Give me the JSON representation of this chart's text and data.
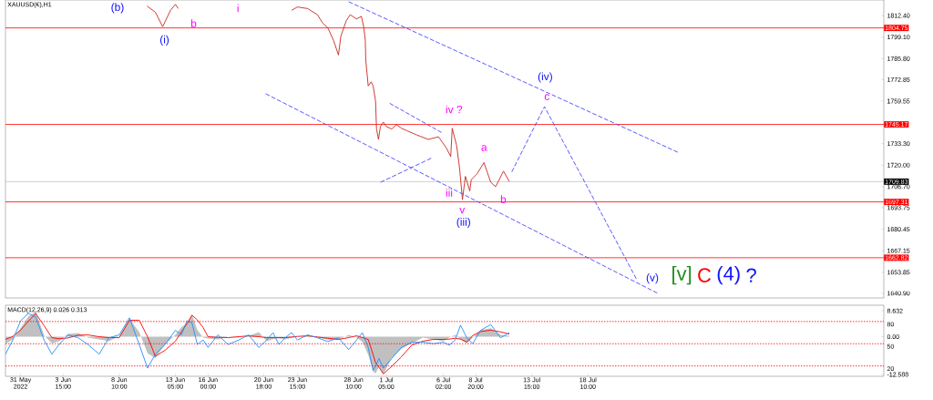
{
  "chart_data": [
    {
      "type": "line",
      "title": "XAUUSD(€),H1",
      "tick_labels": "y",
      "xlim": [
        "2022-05-29T17:00",
        "2022-08-12T16:00"
      ],
      "ylim": [
        1638,
        1822
      ],
      "yticks": [
        {
          "value": 1812.4,
          "label": "1812.40"
        },
        {
          "value": 1799.1,
          "label": "1799.10"
        },
        {
          "value": 1785.8,
          "label": "1785.80"
        },
        {
          "value": 1772.85,
          "label": "1772.85"
        },
        {
          "value": 1759.55,
          "label": "1759.55"
        },
        {
          "value": 1733.3,
          "label": "1733.30"
        },
        {
          "value": 1720,
          "label": "1720.00"
        },
        {
          "value": 1706.7,
          "label": "1706.70"
        },
        {
          "value": 1693.75,
          "label": "1693.75"
        },
        {
          "value": 1680.45,
          "label": "1680.45"
        },
        {
          "value": 1667.15,
          "label": "1667.15"
        },
        {
          "value": 1653.85,
          "label": "1653.85"
        },
        {
          "value": 1640.9,
          "label": "1640.90"
        }
      ],
      "series": [
        {
          "color": "#c8281e",
          "x": [
            "2022-06-10T19:00",
            "2022-06-11T12:00",
            "2022-06-12T03:00",
            "2022-06-12T19:00",
            "2022-06-13T05:00",
            "2022-06-13T11:00",
            "2022-06-13T19:00",
            "2022-06-23T03:00",
            "2022-06-23T15:00",
            "2022-06-24T12:00",
            "2022-06-25T08:00",
            "2022-06-25T19:00",
            "2022-06-26T05:00",
            "2022-06-26T17:00",
            "2022-06-27T03:00",
            "2022-06-27T08:00",
            "2022-06-27T19:00",
            "2022-06-28T03:00",
            "2022-06-28T16:00",
            "2022-06-29T02:00",
            "2022-06-29T07:00",
            "2022-06-29T10:00",
            "2022-06-29T11:00",
            "2022-06-29T16:00",
            "2022-06-29T22:00",
            "2022-06-30T02:00",
            "2022-06-30T07:00",
            "2022-06-30T09:00",
            "2022-06-30T13:00",
            "2022-06-30T17:00",
            "2022-06-30T23:00",
            "2022-07-01T05:00",
            "2022-07-01T16:00",
            "2022-07-02T02:00",
            "2022-07-02T12:00",
            "2022-07-02T23:00",
            "2022-07-03T20:00",
            "2022-07-04T19:00",
            "2022-07-05T16:00",
            "2022-07-06T08:00",
            "2022-07-06T17:00",
            "2022-07-06T20:00",
            "2022-07-07T05:00",
            "2022-07-07T11:00",
            "2022-07-07T17:00",
            "2022-07-07T23:00",
            "2022-07-08T08:00",
            "2022-07-08T11:00",
            "2022-07-08T23:00",
            "2022-07-09T13:00",
            "2022-07-10T03:00",
            "2022-07-10T13:00",
            "2022-07-11T05:00",
            "2022-07-11T17:00"
          ],
          "values": [
            1818.2,
            1814.5,
            1805.5,
            1815.6,
            1819.3,
            1816.7,
            null,
            1815.6,
            1817.7,
            1816.7,
            1812.9,
            1807.6,
            1805.0,
            1797.0,
            1788.0,
            1799.7,
            1809.2,
            1812.9,
            1810.3,
            1811.9,
            1805.0,
            1797.0,
            1784.8,
            1768.9,
            1771.5,
            1768.9,
            1759.8,
            1742.3,
            1735.9,
            1743.9,
            1746.6,
            1743.9,
            1742.3,
            1745.0,
            1742.8,
            1741.3,
            1738.6,
            1735.9,
            1737.5,
            1730.6,
            1725.3,
            1742.8,
            1732.2,
            1718.4,
            1698.8,
            1713.1,
            1704.1,
            1711.0,
            1714.7,
            1721.6,
            1709.4,
            1706.7,
            1716.3,
            1709.9
          ]
        },
        {
          "color": "#4646ff",
          "line_style": "dashed",
          "x": [
            "2022-06-28T00:00",
            "2022-07-26T02:00"
          ],
          "values": [
            1820.9,
            1728.0
          ]
        },
        {
          "color": "#4646ff",
          "line_style": "dashed",
          "x": [
            "2022-06-20T22:00",
            "2022-07-24T08:00"
          ],
          "values": [
            1764.1,
            1641.0
          ]
        },
        {
          "color": "#4646ff",
          "line_style": "dashed",
          "x": [
            "2022-07-01T12:00",
            "2022-07-05T22:00"
          ],
          "values": [
            1758.2,
            1740.2
          ]
        },
        {
          "color": "#4646ff",
          "line_style": "dashed",
          "x": [
            "2022-06-30T17:00",
            "2022-07-05T01:00"
          ],
          "values": [
            1709.4,
            1724.3
          ]
        },
        {
          "color": "#4646ff",
          "line_style": "dashed",
          "x": [
            "2022-07-11T22:00",
            "2022-07-14T17:00",
            "2022-07-22T13:00"
          ],
          "values": [
            1715.8,
            1756.1,
            1649.9
          ]
        }
      ],
      "ref_lines": [
        {
          "axis": "y",
          "value": 1804.75,
          "label": "1804.75",
          "color": "#ff0000"
        },
        {
          "axis": "y",
          "value": 1745.17,
          "label": "1745.17",
          "color": "#ff0000"
        },
        {
          "axis": "y",
          "value": 1709.83,
          "label": "1709.83",
          "color": "#c0c0c0"
        },
        {
          "axis": "y",
          "value": 1697.31,
          "label": "1697.31",
          "color": "#ff0000"
        },
        {
          "axis": "y",
          "value": 1662.82,
          "label": "1662.82",
          "color": "#ff0000"
        }
      ],
      "annotations": [
        "(b)",
        "(i)",
        "b",
        "i",
        "iv ?",
        "iii",
        "v",
        "(iii)",
        "a",
        "b",
        "(iv)",
        "c",
        "(v)",
        "[v]",
        "C",
        "(4)",
        "?"
      ]
    },
    {
      "type": "line",
      "title": "MACD(12,26,9) 0.026 0.313",
      "xlim": [
        "2022-05-29T17:00",
        "2022-08-12T16:00"
      ],
      "ylim": [
        -13.2,
        10.5
      ],
      "y2lim": [
        6,
        102
      ],
      "xticks": [
        {
          "value": "2022-05-31T00:00",
          "label": "31 May 2022"
        },
        {
          "value": "2022-06-03T15:00",
          "label": "3 Jun 15:00"
        },
        {
          "value": "2022-06-08T10:00",
          "label": "8 Jun 10:00"
        },
        {
          "value": "2022-06-13T05:00",
          "label": "13 Jun 05:00"
        },
        {
          "value": "2022-06-16T00:00",
          "label": "16 Jun 00:00"
        },
        {
          "value": "2022-06-20T18:00",
          "label": "20 Jun 18:00"
        },
        {
          "value": "2022-06-23T15:00",
          "label": "23 Jun 15:00"
        },
        {
          "value": "2022-06-28T10:00",
          "label": "28 Jun 10:00"
        },
        {
          "value": "2022-07-01T05:00",
          "label": "1 Jul 05:00"
        },
        {
          "value": "2022-07-06T02:00",
          "label": "6 Jul 02:00"
        },
        {
          "value": "2022-07-08T20:00",
          "label": "8 Jul 20:00"
        },
        {
          "value": "2022-07-13T15:00",
          "label": "13 Jul 15:00"
        },
        {
          "value": "2022-07-18T10:00",
          "label": "18 Jul 10:00"
        }
      ],
      "yticks": [
        {
          "value": 8.632,
          "label": "8.632"
        },
        {
          "value": 0,
          "label": "0.00"
        },
        {
          "value": -12.588,
          "label": "-12.588"
        }
      ],
      "y2ticks": [
        80,
        50,
        20
      ],
      "x": [
        "2022-05-29T17:00",
        "2022-05-30T08:00",
        "2022-05-31T00:00",
        "2022-05-31T16:00",
        "2022-06-01T07:00",
        "2022-06-02T00:00",
        "2022-06-02T16:00",
        "2022-06-03T07:00",
        "2022-06-04T01:00",
        "2022-06-04T22:00",
        "2022-06-05T18:00",
        "2022-06-06T17:00",
        "2022-06-07T13:00",
        "2022-06-08T10:00",
        "2022-06-09T07:00",
        "2022-06-10T03:00",
        "2022-06-10T20:00",
        "2022-06-11T12:00",
        "2022-06-12T08:00",
        "2022-06-13T05:00",
        "2022-06-13T17:00",
        "2022-06-14T05:00",
        "2022-06-14T15:00",
        "2022-06-15T02:00",
        "2022-06-15T14:00",
        "2022-06-16T00:00",
        "2022-06-16T20:00",
        "2022-06-17T17:00",
        "2022-06-18T15:00",
        "2022-06-19T11:00",
        "2022-06-20T08:00",
        "2022-06-21T00:00",
        "2022-06-21T13:00",
        "2022-06-22T01:00",
        "2022-06-22T14:00",
        "2022-06-23T03:00",
        "2022-06-23T15:00",
        "2022-06-24T12:00",
        "2022-06-25T08:00",
        "2022-06-26T05:00",
        "2022-06-27T03:00",
        "2022-06-28T00:00",
        "2022-06-28T16:00",
        "2022-06-29T04:00",
        "2022-06-29T16:00",
        "2022-06-30T02:00",
        "2022-06-30T07:00",
        "2022-06-30T14:00",
        "2022-06-30T23:00",
        "2022-07-01T16:00",
        "2022-07-02T12:00",
        "2022-07-03T09:00",
        "2022-07-04T08:00",
        "2022-07-05T05:00",
        "2022-07-06T02:00",
        "2022-07-06T14:00",
        "2022-07-07T02:00",
        "2022-07-07T13:00",
        "2022-07-08T02:00",
        "2022-07-08T14:00",
        "2022-07-09T06:00",
        "2022-07-10T03:00",
        "2022-07-10T23:00",
        "2022-07-11T17:00"
      ],
      "series": [
        {
          "type": "area",
          "color": "#c0c0c0",
          "values": [
            -2.5,
            -0.9,
            2.8,
            6.8,
            8.3,
            0.5,
            -2.2,
            -1.5,
            0.9,
            1.2,
            -0.3,
            -0.9,
            -1.5,
            0.2,
            6.0,
            1.5,
            -5.5,
            -7.1,
            -2.5,
            0.6,
            3.1,
            4.6,
            7.4,
            2.2,
            -0.3,
            -0.6,
            -0.9,
            0,
            -0.2,
            0.3,
            1.5,
            -1.5,
            -0.8,
            -0.5,
            -0.9,
            -0.4,
            0,
            0.3,
            -0.2,
            -1.0,
            -1.0,
            0.6,
            -0.2,
            -1.7,
            -6.0,
            -11.5,
            -12.3,
            -10.0,
            -12.5,
            -7.1,
            -4.0,
            -2.2,
            -0.3,
            -0.9,
            -1.5,
            -0.3,
            0.6,
            -0.9,
            -2.2,
            -0.3,
            2.2,
            2.8,
            0.6,
            0.3
          ]
        },
        {
          "color": "#ff0000",
          "values": [
            -0.9,
            0.1,
            2.2,
            5.2,
            7.7,
            3.7,
            -0.3,
            -0.7,
            -0.4,
            0.5,
            0.6,
            0.0,
            -0.3,
            -0.3,
            5.5,
            5.5,
            0.0,
            -6.5,
            -4.5,
            -1.5,
            1.5,
            4.4,
            7.2,
            5.6,
            3.0,
            0,
            -0.2,
            -0.3,
            0,
            0.3,
            0,
            -0.3,
            -0.3,
            -0.3,
            -0.3,
            -0.1,
            0.1,
            0.3,
            -0.1,
            -0.5,
            -0.9,
            -0.3,
            0.3,
            -0.3,
            -0.9,
            -6.0,
            -8.6,
            -10.2,
            -12.4,
            -9.9,
            -6.7,
            -2.8,
            -1.5,
            -0.9,
            -0.9,
            -0.8,
            -0.5,
            -0.8,
            -1.8,
            0.4,
            1.7,
            2.2,
            1.6,
            0.9
          ]
        },
        {
          "color": "#1e90ff",
          "axis": "y2",
          "values": [
            36,
            55,
            81,
            91,
            86,
            55,
            36,
            49,
            62,
            58,
            49,
            36,
            58,
            62,
            85,
            49,
            17,
            36,
            49,
            68,
            62,
            81,
            78,
            49,
            55,
            45,
            62,
            49,
            55,
            62,
            45,
            55,
            65,
            49,
            58,
            65,
            55,
            62,
            58,
            53,
            58,
            42,
            55,
            65,
            45,
            14,
            20,
            30,
            17,
            30,
            45,
            52,
            52,
            50,
            52,
            48,
            55,
            75,
            58,
            50,
            68,
            76,
            58,
            65
          ]
        }
      ],
      "ref_lines": [
        {
          "axis": "y2",
          "value": 80,
          "color": "#ff0000",
          "line_style": "dotted"
        },
        {
          "axis": "y2",
          "value": 50,
          "color": "#ff0000",
          "line_style": "dotted"
        },
        {
          "axis": "y2",
          "value": 20,
          "color": "#ff0000",
          "line_style": "dotted"
        }
      ]
    }
  ]
}
